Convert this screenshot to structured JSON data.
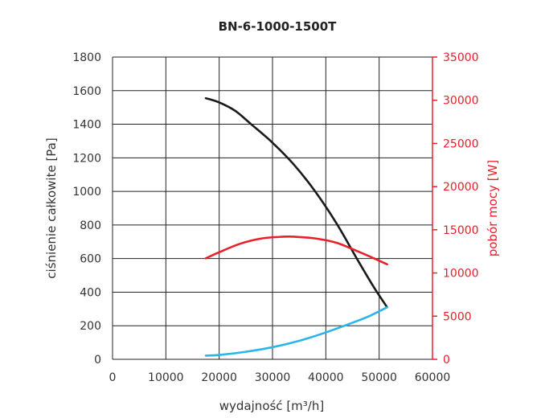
{
  "chart_data": {
    "type": "line",
    "title": "BN-6-1000-1500T",
    "xlabel": "wydajność [m³/h]",
    "ylabel": "ciśnienie całkowite [Pa]",
    "y2label": "pobór mocy [W]",
    "xlim": [
      0,
      60000
    ],
    "ylim": [
      0,
      1800
    ],
    "y2lim": [
      0,
      35000
    ],
    "x_ticks": [
      0,
      10000,
      20000,
      30000,
      40000,
      50000,
      60000
    ],
    "y_ticks": [
      0,
      200,
      400,
      600,
      800,
      1000,
      1200,
      1400,
      1600,
      1800
    ],
    "y2_ticks": [
      0,
      5000,
      10000,
      15000,
      20000,
      25000,
      30000,
      35000
    ],
    "grid": true,
    "series": [
      {
        "name": "",
        "axis": "left",
        "color": "#1a1a1a",
        "x": [
          17500,
          20000,
          23000,
          26000,
          30000,
          34000,
          38000,
          42000,
          46000,
          49000,
          51500
        ],
        "y": [
          1555,
          1530,
          1480,
          1400,
          1290,
          1160,
          1000,
          810,
          590,
          430,
          310
        ]
      },
      {
        "name": "",
        "axis": "right",
        "color": "#e8202a",
        "x": [
          17500,
          20000,
          24000,
          28000,
          32000,
          34000,
          38000,
          42000,
          46000,
          49000,
          51500
        ],
        "y": [
          11700,
          12400,
          13400,
          14000,
          14200,
          14200,
          14000,
          13500,
          12500,
          11700,
          11000
        ],
        "y_display_left": [
          601,
          637,
          689,
          720,
          730,
          730,
          720,
          694,
          643,
          601,
          566
        ]
      },
      {
        "name": "",
        "axis": "left",
        "color": "#29b6e8",
        "x": [
          17500,
          20000,
          25000,
          30000,
          35000,
          40000,
          45000,
          48000,
          51500
        ],
        "y": [
          22,
          26,
          45,
          72,
          110,
          160,
          218,
          255,
          310
        ]
      }
    ]
  }
}
